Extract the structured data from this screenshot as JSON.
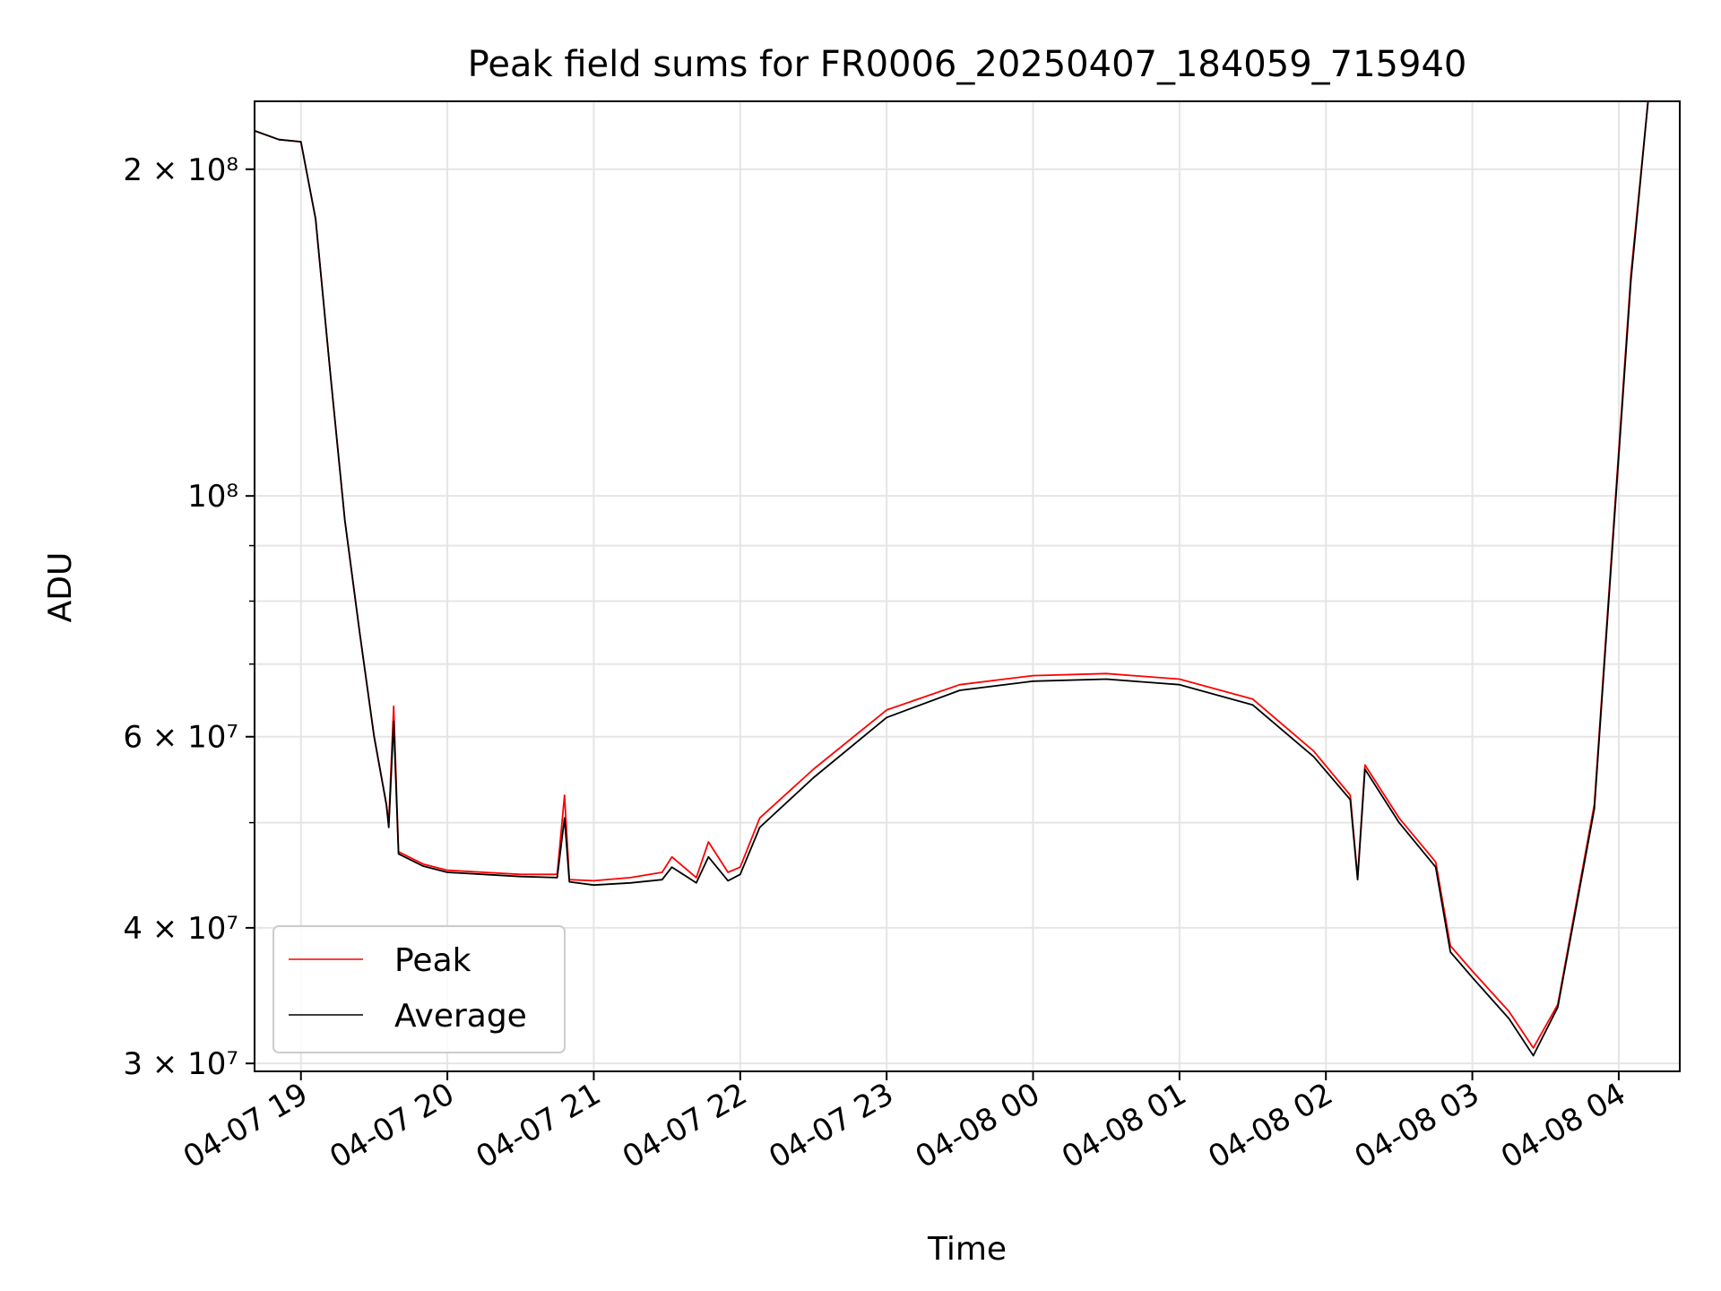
{
  "chart_data": {
    "type": "line",
    "title": "Peak field sums for FR0006_20250407_184059_715940",
    "xlabel": "Time",
    "ylabel": "ADU",
    "yscale": "log",
    "xlim": [
      "2025-04-07 18:41",
      "2025-04-08 04:25"
    ],
    "ylim": [
      29500000,
      231000000
    ],
    "grid": true,
    "legend": {
      "placement": "lower-left"
    },
    "x_ticks": [
      "04-07 19",
      "04-07 20",
      "04-07 21",
      "04-07 22",
      "04-07 23",
      "04-08 00",
      "04-08 01",
      "04-08 02",
      "04-08 03",
      "04-08 04"
    ],
    "y_ticks": [
      {
        "value": 30000000,
        "label": "3 × 10⁷"
      },
      {
        "value": 40000000,
        "label": "4 × 10⁷"
      },
      {
        "value": 60000000,
        "label": "6 × 10⁷"
      },
      {
        "value": 100000000,
        "label": "10⁸"
      },
      {
        "value": 200000000,
        "label": "2 × 10⁸"
      }
    ],
    "y_minor_ticks": [
      50000000,
      70000000,
      80000000,
      90000000
    ],
    "x": [
      "2025-04-07 18:41",
      "2025-04-07 18:51",
      "2025-04-07 19:00",
      "2025-04-07 19:06",
      "2025-04-07 19:12",
      "2025-04-07 19:18",
      "2025-04-07 19:24",
      "2025-04-07 19:30",
      "2025-04-07 19:35",
      "2025-04-07 19:36",
      "2025-04-07 19:38",
      "2025-04-07 19:40",
      "2025-04-07 19:50",
      "2025-04-07 20:00",
      "2025-04-07 20:15",
      "2025-04-07 20:30",
      "2025-04-07 20:45",
      "2025-04-07 20:48",
      "2025-04-07 20:50",
      "2025-04-07 21:00",
      "2025-04-07 21:15",
      "2025-04-07 21:28",
      "2025-04-07 21:32",
      "2025-04-07 21:42",
      "2025-04-07 21:47",
      "2025-04-07 21:55",
      "2025-04-07 22:00",
      "2025-04-07 22:08",
      "2025-04-07 22:30",
      "2025-04-07 23:00",
      "2025-04-07 23:30",
      "2025-04-08 00:00",
      "2025-04-08 00:30",
      "2025-04-08 01:00",
      "2025-04-08 01:30",
      "2025-04-08 01:55",
      "2025-04-08 02:10",
      "2025-04-08 02:13",
      "2025-04-08 02:16",
      "2025-04-08 02:30",
      "2025-04-08 02:45",
      "2025-04-08 02:51",
      "2025-04-08 03:00",
      "2025-04-08 03:15",
      "2025-04-08 03:25",
      "2025-04-08 03:35",
      "2025-04-08 03:50",
      "2025-04-08 04:05",
      "2025-04-08 04:12"
    ],
    "series": [
      {
        "name": "Peak",
        "color": "#ff0000",
        "values": [
          217000000,
          213000000,
          212000000,
          180000000,
          130000000,
          95000000,
          75000000,
          60000000,
          52000000,
          50000000,
          64000000,
          47000000,
          45800000,
          45200000,
          45000000,
          44800000,
          44800000,
          53000000,
          44300000,
          44200000,
          44500000,
          45000000,
          46500000,
          44500000,
          48000000,
          45000000,
          45500000,
          50500000,
          56000000,
          63500000,
          67000000,
          68300000,
          68600000,
          67800000,
          65000000,
          58200000,
          53000000,
          44500000,
          56500000,
          50500000,
          46000000,
          38500000,
          36500000,
          33500000,
          31000000,
          34000000,
          52000000,
          160000000,
          231000000
        ]
      },
      {
        "name": "Average",
        "color": "#000000",
        "values": [
          217000000,
          213000000,
          212000000,
          180000000,
          130000000,
          95000000,
          75000000,
          60000000,
          52000000,
          49500000,
          62000000,
          46800000,
          45600000,
          45000000,
          44800000,
          44600000,
          44500000,
          50500000,
          44100000,
          43800000,
          44000000,
          44300000,
          45500000,
          44000000,
          46500000,
          44200000,
          44800000,
          49500000,
          55000000,
          62500000,
          66200000,
          67500000,
          67800000,
          67000000,
          64200000,
          57500000,
          52500000,
          44300000,
          56000000,
          50000000,
          45500000,
          38000000,
          36000000,
          33000000,
          30500000,
          33800000,
          51500000,
          158000000,
          231000000
        ]
      }
    ]
  }
}
